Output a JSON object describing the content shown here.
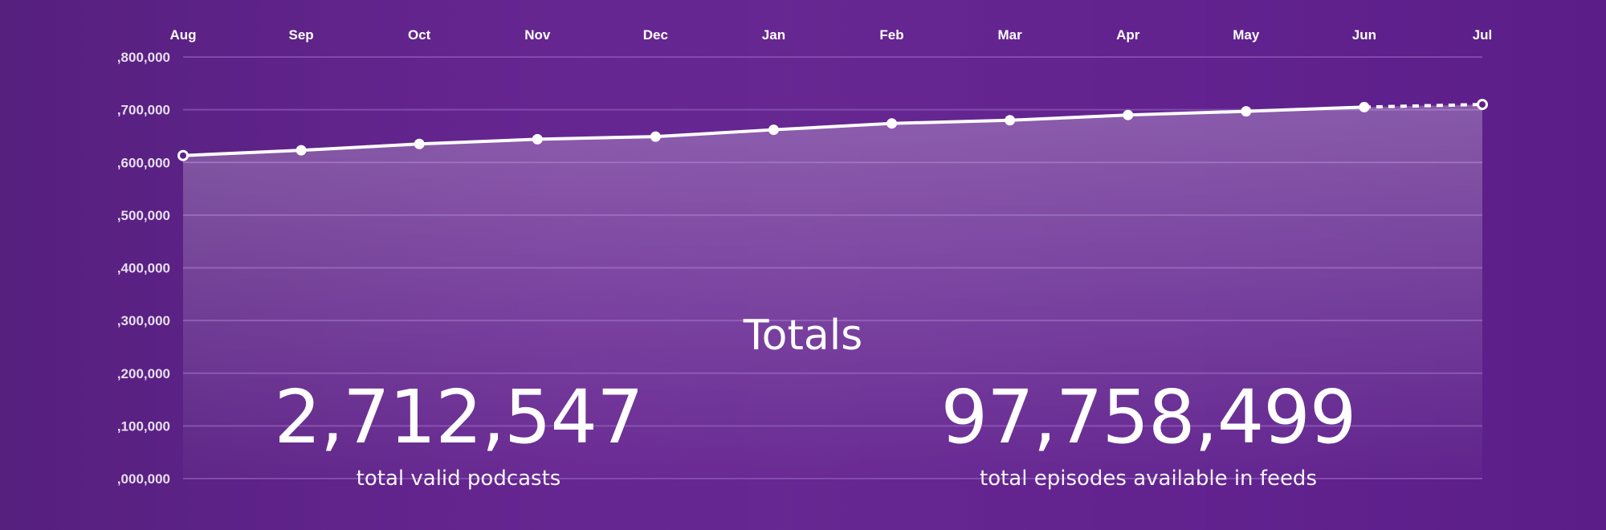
{
  "chart_data": {
    "type": "area",
    "categories": [
      "Aug",
      "Sep",
      "Oct",
      "Nov",
      "Dec",
      "Jan",
      "Feb",
      "Mar",
      "Apr",
      "May",
      "Jun",
      "Jul"
    ],
    "values": [
      2613000,
      2623000,
      2635000,
      2644000,
      2649000,
      2662000,
      2674000,
      2680000,
      2690000,
      2697000,
      2705000,
      2710000
    ],
    "ylim": [
      2000000,
      2800000
    ],
    "yticks": [
      2000000,
      2100000,
      2200000,
      2300000,
      2400000,
      2500000,
      2600000,
      2700000,
      2800000
    ],
    "ytick_labels": [
      ",000,000",
      ",100,000",
      ",200,000",
      ",300,000",
      ",400,000",
      ",500,000",
      ",600,000",
      ",700,000",
      ",800,000"
    ],
    "dashed_last_segment": true,
    "grid": true,
    "colors": {
      "line": "#ffffff",
      "fill": "#ffffff",
      "grid": "#8a53b3"
    }
  },
  "totals": {
    "title": "Totals",
    "podcasts_value": "2,712,547",
    "podcasts_label": "total valid podcasts",
    "episodes_value": "97,758,499",
    "episodes_label": "total episodes available in feeds"
  }
}
